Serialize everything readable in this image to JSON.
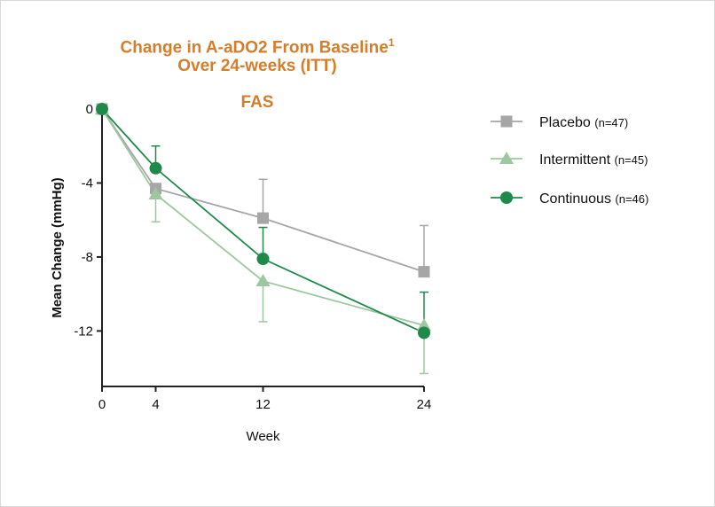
{
  "chart_data": {
    "type": "line",
    "title_line1": "Change in A-aDO2 From Baseline",
    "title_superscript": "1",
    "title_line2": "Over 24-weeks (ITT)",
    "subtitle": "FAS",
    "xlabel": "Week",
    "ylabel": "Mean Change (mmHg)",
    "x": [
      0,
      4,
      12,
      24
    ],
    "x_ticks": [
      "0",
      "4",
      "12",
      "24"
    ],
    "y_ticks": [
      "0",
      "-4",
      "-8",
      "-12"
    ],
    "y_tick_values": [
      0,
      -4,
      -8,
      -12
    ],
    "xlim": [
      0,
      24
    ],
    "ylim": [
      -15,
      0
    ],
    "grid": false,
    "legend_position": "right",
    "series": [
      {
        "name": "Placebo",
        "n_label": "(n=47)",
        "marker": "square",
        "color": "#a6a6a6",
        "values": [
          0,
          -4.3,
          -5.9,
          -8.8
        ],
        "err_upper": [
          null,
          null,
          -3.8,
          -6.3
        ],
        "err_lower": [
          null,
          null,
          null,
          null
        ]
      },
      {
        "name": "Intermittent",
        "n_label": "(n=45)",
        "marker": "triangle",
        "color": "#9dc79e",
        "values": [
          0,
          -4.6,
          -9.3,
          -11.7
        ],
        "err_upper": [
          null,
          null,
          null,
          null
        ],
        "err_lower": [
          null,
          -6.1,
          -11.5,
          -14.3
        ]
      },
      {
        "name": "Continuous",
        "n_label": "(n=46)",
        "marker": "circle",
        "color": "#1e8a4a",
        "values": [
          0,
          -3.2,
          -8.1,
          -12.1
        ],
        "err_upper": [
          null,
          -2.0,
          -6.4,
          -9.9
        ],
        "err_lower": [
          null,
          null,
          null,
          null
        ]
      }
    ]
  }
}
